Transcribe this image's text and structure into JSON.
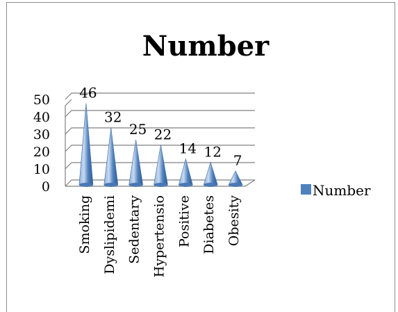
{
  "chart_data": {
    "type": "bar",
    "subtype": "3d-cone",
    "title": "Number",
    "categories": [
      "Smoking",
      "Dyslipidemi",
      "Sedentary",
      "Hypertensio",
      "Positive",
      "Diabetes",
      "Obesity"
    ],
    "series": [
      {
        "name": "Number",
        "values": [
          46,
          32,
          25,
          22,
          14,
          12,
          7
        ]
      }
    ],
    "data_labels": [
      "46",
      "32",
      "25",
      "22",
      "14",
      "12",
      "7"
    ],
    "ylim": [
      0,
      50
    ],
    "y_ticks": [
      "0",
      "10",
      "20",
      "30",
      "40",
      "50"
    ],
    "grid": true,
    "legend": {
      "position": "right",
      "label": "Number"
    },
    "colors": {
      "cone_light": "#a9c4ea",
      "cone_mid": "#4f81bd",
      "cone_dark": "#2f5a8f",
      "legend_swatch": "#4f81bd"
    }
  }
}
